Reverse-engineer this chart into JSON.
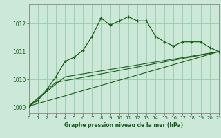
{
  "title": "Graphe pression niveau de la mer (hPa)",
  "bg_color": "#cce8d8",
  "grid_color": "#99ccaa",
  "line_color": "#1a5c1a",
  "x_min": 0,
  "x_max": 21,
  "y_min": 1008.8,
  "y_max": 1012.7,
  "y_ticks": [
    1009,
    1010,
    1011,
    1012
  ],
  "x_ticks": [
    0,
    1,
    2,
    3,
    4,
    5,
    6,
    7,
    8,
    9,
    10,
    11,
    12,
    13,
    14,
    15,
    16,
    17,
    18,
    19,
    20,
    21
  ],
  "series_main": {
    "x": [
      0,
      1,
      2,
      3,
      4,
      5,
      6,
      7,
      8,
      9,
      10,
      11,
      12,
      13,
      14,
      15,
      16,
      17,
      18,
      19,
      20,
      21
    ],
    "y": [
      1009.05,
      1009.25,
      1009.65,
      1010.1,
      1010.65,
      1010.8,
      1011.05,
      1011.55,
      1012.2,
      1011.95,
      1012.1,
      1012.25,
      1012.1,
      1012.1,
      1011.55,
      1011.35,
      1011.2,
      1011.35,
      1011.35,
      1011.35,
      1011.15,
      1011.0
    ]
  },
  "series_smooth1": {
    "x": [
      0,
      21
    ],
    "y": [
      1009.05,
      1011.0
    ]
  },
  "series_smooth2": {
    "x": [
      0,
      3,
      21
    ],
    "y": [
      1009.05,
      1009.9,
      1011.0
    ]
  },
  "series_smooth3": {
    "x": [
      0,
      4,
      21
    ],
    "y": [
      1009.05,
      1010.1,
      1011.0
    ]
  }
}
